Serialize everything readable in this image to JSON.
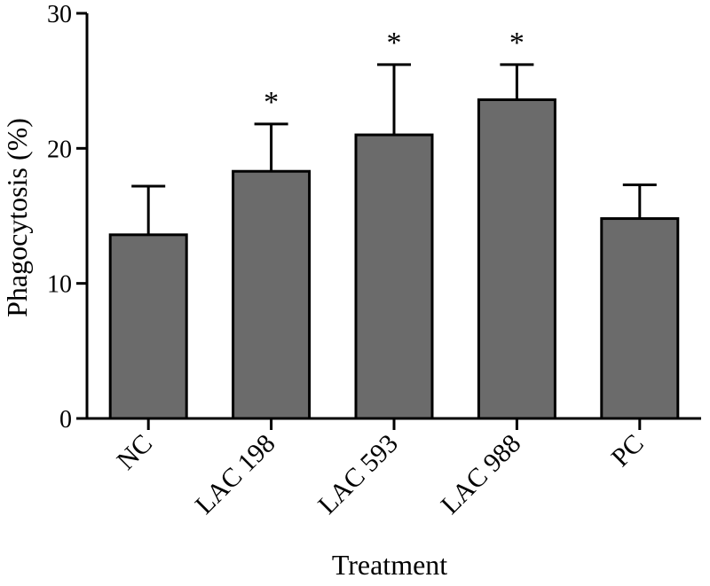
{
  "chart_data": {
    "type": "bar",
    "title": "",
    "xlabel": "Treatment",
    "ylabel": "Phagocytosis (%)",
    "ylim": [
      0,
      30
    ],
    "yticks": [
      0,
      10,
      20,
      30
    ],
    "categories": [
      "NC",
      "LAC 198",
      "LAC 593",
      "LAC 988",
      "PC"
    ],
    "values": [
      13.6,
      18.3,
      21.0,
      23.6,
      14.8
    ],
    "error_upper": [
      3.6,
      3.5,
      5.2,
      2.6,
      2.5
    ],
    "significance": [
      "",
      "*",
      "*",
      "*",
      ""
    ],
    "bar_color": "#6b6b6b",
    "grid": false
  }
}
